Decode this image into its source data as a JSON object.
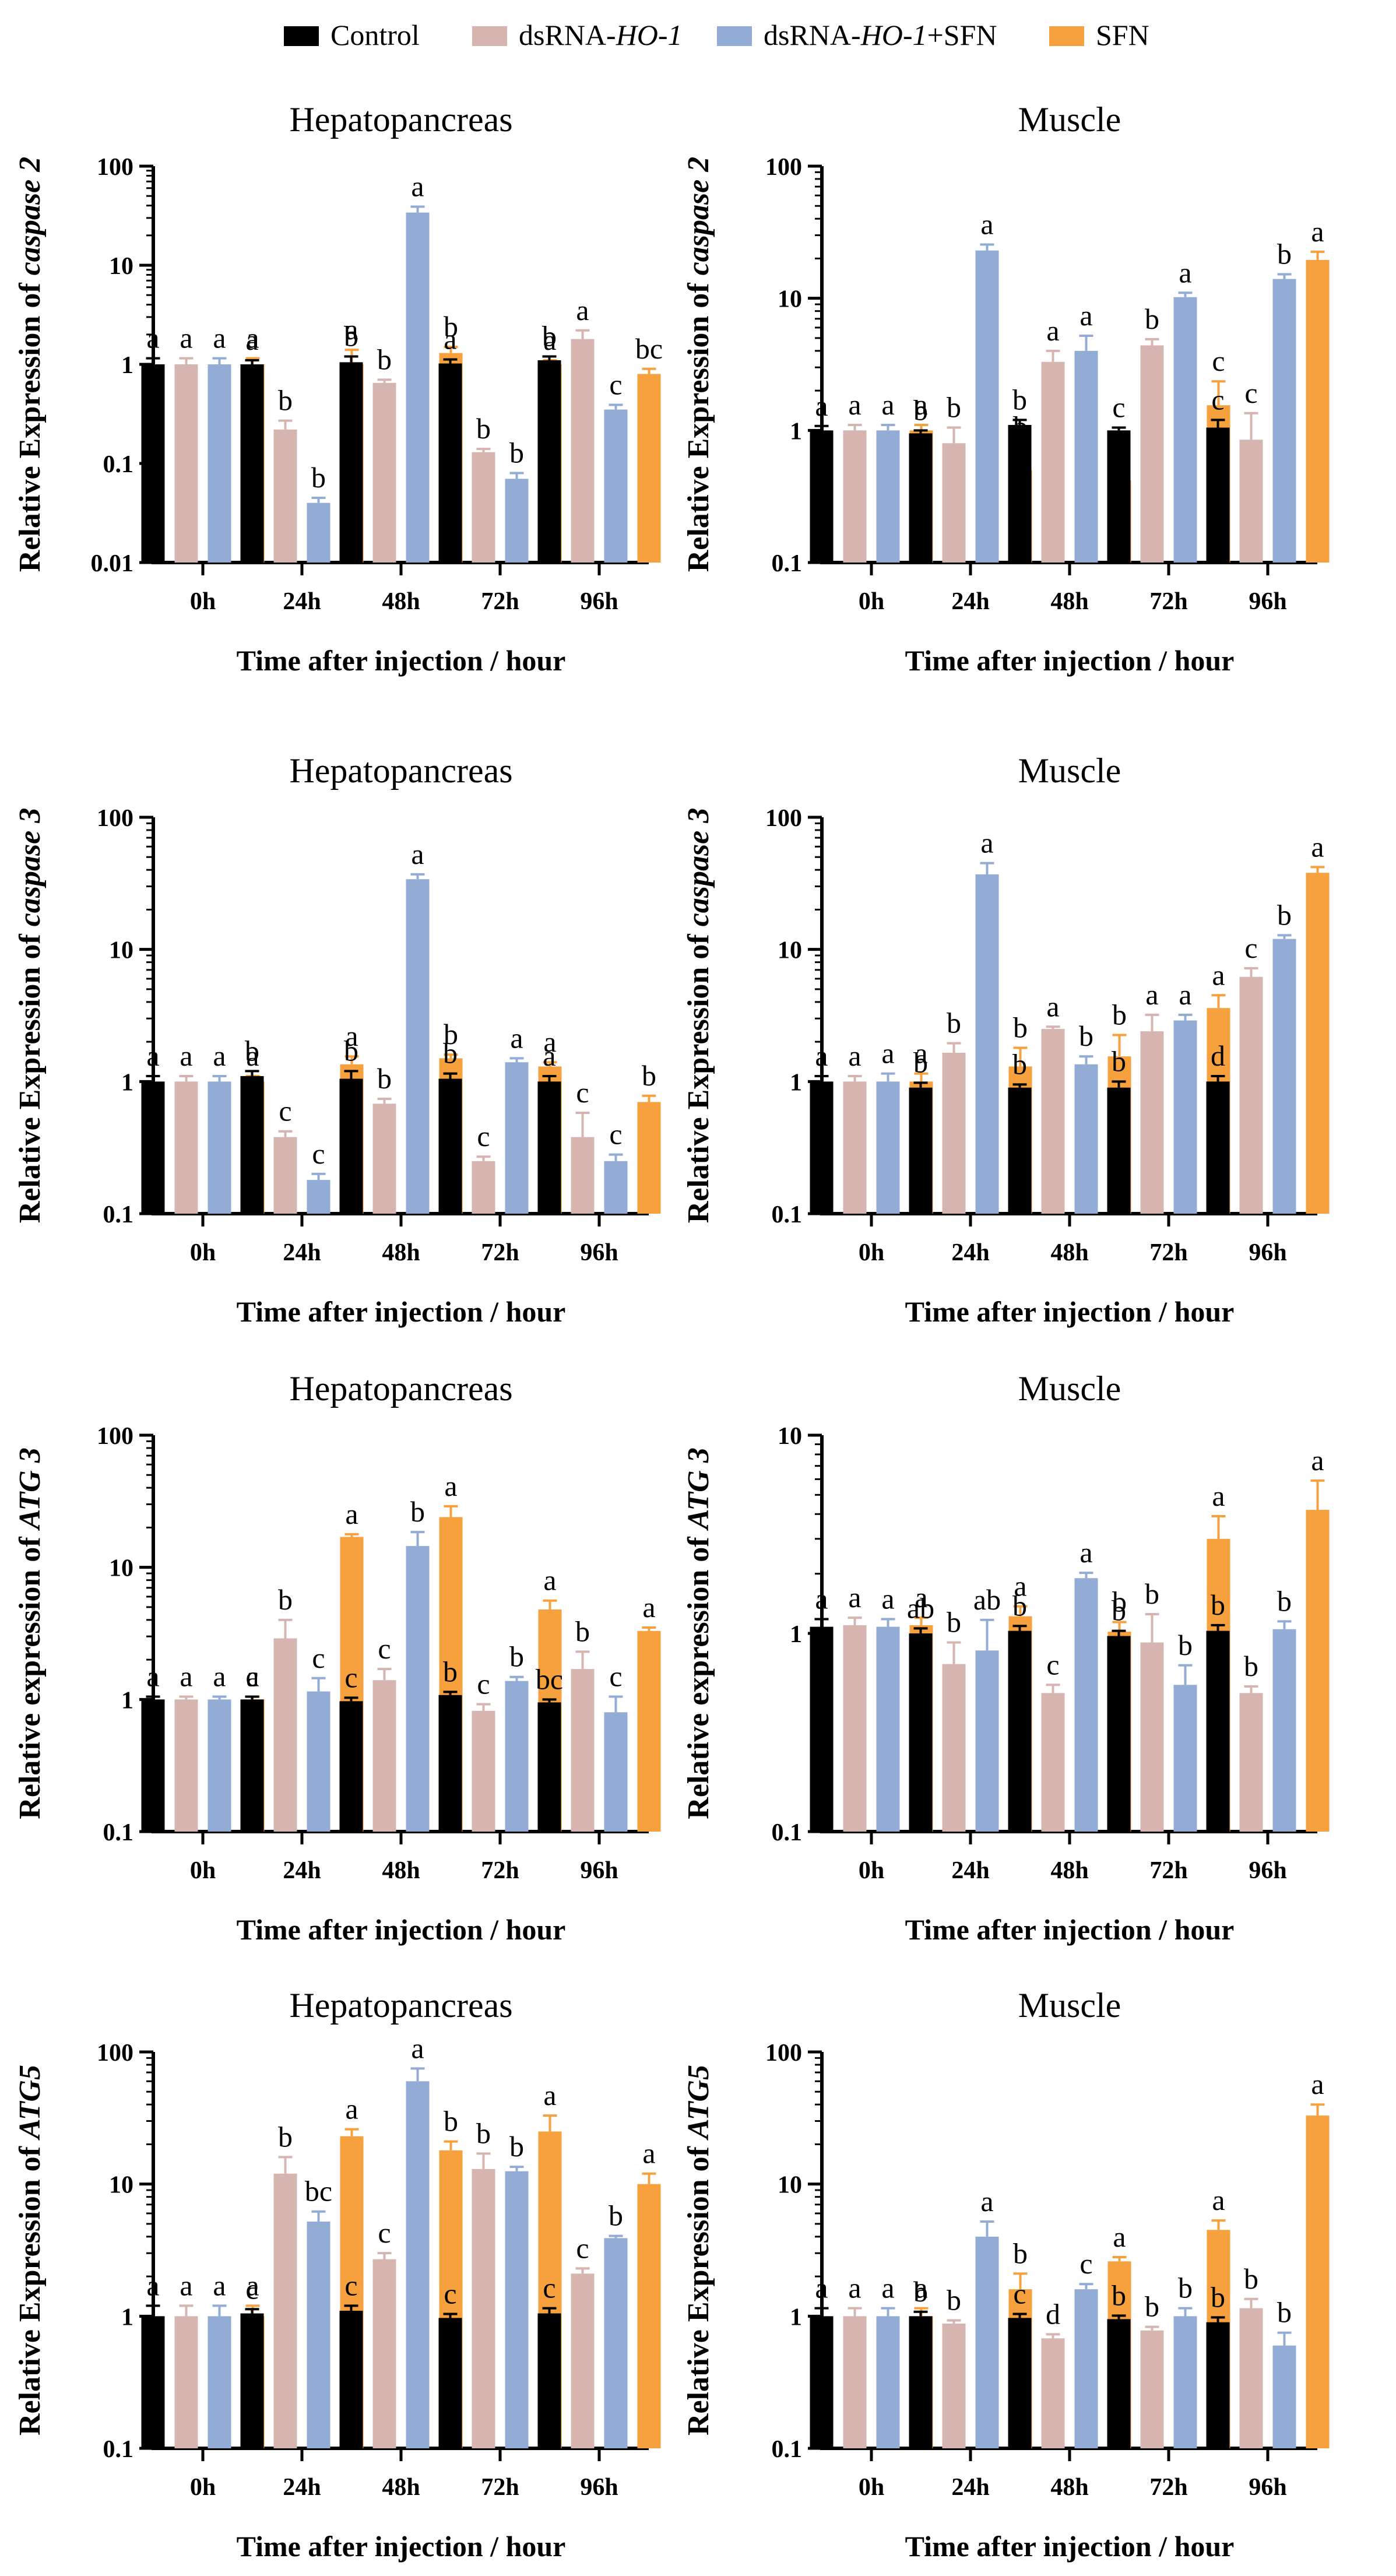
{
  "legend": [
    {
      "name": "Control",
      "plain": "Control",
      "gene": "",
      "suffix": "",
      "color": "#000000"
    },
    {
      "name": "dsRNA-HO-1",
      "plain": "dsRNA-",
      "gene": "HO-1",
      "suffix": "",
      "color": "#d6b4b0"
    },
    {
      "name": "dsRNA-HO-1+SFN",
      "plain": "dsRNA-",
      "gene": "HO-1",
      "suffix": "+SFN",
      "color": "#93acd6"
    },
    {
      "name": "SFN",
      "plain": "SFN",
      "gene": "",
      "suffix": "",
      "color": "#f7a13e"
    }
  ],
  "chart_data": [
    {
      "type": "bar",
      "scale": "log",
      "title": "Hepatopancreas",
      "ylabel_prefix": "Relative Expression of ",
      "ylabel_gene": "caspase 2",
      "xlabel": "Time after injection / hour",
      "categories": [
        "0h",
        "24h",
        "48h",
        "72h",
        "96h"
      ],
      "ylim": [
        0.01,
        100
      ],
      "yticks": [
        0.01,
        0.1,
        1,
        10,
        100
      ],
      "ytick_labels": [
        "0.01",
        "0.1",
        "1",
        "10",
        "100"
      ],
      "series": [
        {
          "name": "Control",
          "values": [
            1.0,
            1.0,
            1.05,
            1.02,
            1.1
          ],
          "errors": [
            0.15,
            0.1,
            0.15,
            0.1,
            0.1
          ],
          "labels": [
            "a",
            "a",
            "b",
            "a",
            "b"
          ]
        },
        {
          "name": "dsRNA-HO-1",
          "values": [
            1.0,
            0.22,
            0.65,
            0.13,
            1.8
          ],
          "errors": [
            0.15,
            0.05,
            0.05,
            0.01,
            0.4
          ],
          "labels": [
            "a",
            "b",
            "b",
            "b",
            "a"
          ]
        },
        {
          "name": "dsRNA-HO-1+SFN",
          "values": [
            1.0,
            0.04,
            34,
            0.07,
            0.35
          ],
          "errors": [
            0.15,
            0.005,
            5,
            0.01,
            0.04
          ],
          "labels": [
            "a",
            "b",
            "a",
            "b",
            "c"
          ]
        },
        {
          "name": "SFN",
          "values": [
            1.0,
            1.0,
            1.3,
            1.0,
            0.8
          ],
          "errors": [
            0.15,
            0.4,
            0.2,
            0.1,
            0.1
          ],
          "labels": [
            "a",
            "a",
            "b",
            "a",
            "bc"
          ]
        }
      ]
    },
    {
      "type": "bar",
      "scale": "log",
      "title": "Muscle",
      "ylabel_prefix": "Relative Expression of ",
      "ylabel_gene": "caspase 2",
      "xlabel": "Time after injection / hour",
      "categories": [
        "0h",
        "24h",
        "48h",
        "72h",
        "96h"
      ],
      "ylim": [
        0.1,
        100
      ],
      "yticks": [
        0.1,
        1,
        10,
        100
      ],
      "ytick_labels": [
        "0.1",
        "1",
        "10",
        "100"
      ],
      "series": [
        {
          "name": "Control",
          "values": [
            1.0,
            0.95,
            1.1,
            1.0,
            1.05
          ],
          "errors": [
            0.08,
            0.05,
            0.1,
            0.05,
            0.15
          ],
          "labels": [
            "a",
            "b",
            "b",
            "c",
            "c"
          ]
        },
        {
          "name": "dsRNA-HO-1",
          "values": [
            1.0,
            0.8,
            3.3,
            4.4,
            0.85
          ],
          "errors": [
            0.1,
            0.25,
            0.7,
            0.5,
            0.5
          ],
          "labels": [
            "a",
            "b",
            "a",
            "b",
            "c"
          ]
        },
        {
          "name": "dsRNA-HO-1+SFN",
          "values": [
            1.0,
            23,
            4.0,
            10.2,
            14
          ],
          "errors": [
            0.1,
            2.5,
            1.2,
            0.8,
            1.2
          ],
          "labels": [
            "a",
            "a",
            "a",
            "a",
            "b"
          ]
        },
        {
          "name": "SFN",
          "values": [
            1.0,
            0.5,
            0.42,
            1.55,
            19.5
          ],
          "errors": [
            0.1,
            0.25,
            0.15,
            0.8,
            3
          ],
          "labels": [
            "a",
            "b",
            "b",
            "c",
            "a"
          ]
        }
      ]
    },
    {
      "type": "bar",
      "scale": "log",
      "title": "Hepatopancreas",
      "ylabel_prefix": "Relative Expression of ",
      "ylabel_gene": "caspase 3",
      "xlabel": "Time after injection / hour",
      "categories": [
        "0h",
        "24h",
        "48h",
        "72h",
        "96h"
      ],
      "ylim": [
        0.1,
        100
      ],
      "yticks": [
        0.1,
        1,
        10,
        100
      ],
      "ytick_labels": [
        "0.1",
        "1",
        "10",
        "100"
      ],
      "series": [
        {
          "name": "Control",
          "values": [
            1.0,
            1.1,
            1.05,
            1.05,
            1.0
          ],
          "errors": [
            0.1,
            0.1,
            0.15,
            0.1,
            0.1
          ],
          "labels": [
            "a",
            "b",
            "b",
            "b",
            "a"
          ]
        },
        {
          "name": "dsRNA-HO-1",
          "values": [
            1.0,
            0.38,
            0.68,
            0.25,
            0.38
          ],
          "errors": [
            0.1,
            0.04,
            0.06,
            0.02,
            0.2
          ],
          "labels": [
            "a",
            "c",
            "b",
            "c",
            "c"
          ]
        },
        {
          "name": "dsRNA-HO-1+SFN",
          "values": [
            1.0,
            0.18,
            34,
            1.4,
            0.25
          ],
          "errors": [
            0.1,
            0.02,
            3,
            0.1,
            0.03
          ],
          "labels": [
            "a",
            "c",
            "a",
            "a",
            "c"
          ]
        },
        {
          "name": "SFN",
          "values": [
            1.0,
            1.35,
            1.5,
            1.3,
            0.7
          ],
          "errors": [
            0.1,
            0.2,
            0.1,
            0.1,
            0.08
          ],
          "labels": [
            "a",
            "a",
            "b",
            "a",
            "b"
          ]
        }
      ]
    },
    {
      "type": "bar",
      "scale": "log",
      "title": "Muscle",
      "ylabel_prefix": "Relative Expression of ",
      "ylabel_gene": "caspase 3",
      "xlabel": "Time after injection / hour",
      "categories": [
        "0h",
        "24h",
        "48h",
        "72h",
        "96h"
      ],
      "ylim": [
        0.1,
        100
      ],
      "yticks": [
        0.1,
        1,
        10,
        100
      ],
      "ytick_labels": [
        "0.1",
        "1",
        "10",
        "100"
      ],
      "series": [
        {
          "name": "Control",
          "values": [
            1.0,
            0.9,
            0.9,
            0.9,
            1.0
          ],
          "errors": [
            0.1,
            0.08,
            0.05,
            0.1,
            0.1
          ],
          "labels": [
            "a",
            "b",
            "b",
            "b",
            "d"
          ]
        },
        {
          "name": "dsRNA-HO-1",
          "values": [
            1.0,
            1.65,
            2.5,
            2.4,
            6.2
          ],
          "errors": [
            0.1,
            0.3,
            0.1,
            0.8,
            1
          ],
          "labels": [
            "a",
            "b",
            "a",
            "a",
            "c"
          ]
        },
        {
          "name": "dsRNA-HO-1+SFN",
          "values": [
            1.0,
            37,
            1.35,
            2.9,
            12
          ],
          "errors": [
            0.15,
            8,
            0.2,
            0.3,
            0.8
          ],
          "labels": [
            "a",
            "a",
            "b",
            "a",
            "b"
          ]
        },
        {
          "name": "SFN",
          "values": [
            1.0,
            1.3,
            1.55,
            3.6,
            38
          ],
          "errors": [
            0.15,
            0.5,
            0.7,
            0.9,
            4
          ],
          "labels": [
            "a",
            "b",
            "b",
            "a",
            "a"
          ]
        }
      ]
    },
    {
      "type": "bar",
      "scale": "log",
      "title": "Hepatopancreas",
      "ylabel_prefix": "Relative expression of ",
      "ylabel_gene": "ATG 3",
      "xlabel": "Time after injection / hour",
      "categories": [
        "0h",
        "24h",
        "48h",
        "72h",
        "96h"
      ],
      "ylim": [
        0.1,
        100
      ],
      "yticks": [
        0.1,
        1,
        10,
        100
      ],
      "ytick_labels": [
        "0.1",
        "1",
        "10",
        "100"
      ],
      "series": [
        {
          "name": "Control",
          "values": [
            1.0,
            1.0,
            0.97,
            1.08,
            0.95
          ],
          "errors": [
            0.05,
            0.05,
            0.06,
            0.06,
            0.05
          ],
          "labels": [
            "a",
            "c",
            "c",
            "b",
            "bc"
          ]
        },
        {
          "name": "dsRNA-HO-1",
          "values": [
            1.0,
            2.9,
            1.4,
            0.82,
            1.7
          ],
          "errors": [
            0.05,
            1.1,
            0.3,
            0.1,
            0.6
          ],
          "labels": [
            "a",
            "b",
            "c",
            "c",
            "b"
          ]
        },
        {
          "name": "dsRNA-HO-1+SFN",
          "values": [
            1.0,
            1.15,
            14.5,
            1.38,
            0.8
          ],
          "errors": [
            0.05,
            0.3,
            4,
            0.1,
            0.25
          ],
          "labels": [
            "a",
            "c",
            "b",
            "b",
            "c"
          ]
        },
        {
          "name": "SFN",
          "values": [
            1.0,
            17,
            24,
            4.8,
            3.3
          ],
          "errors": [
            0.05,
            0.8,
            5,
            0.8,
            0.2
          ],
          "labels": [
            "a",
            "a",
            "a",
            "a",
            "a"
          ]
        }
      ]
    },
    {
      "type": "bar",
      "scale": "log",
      "title": "Muscle",
      "ylabel_prefix": "Relative expression of ",
      "ylabel_gene": "ATG 3",
      "xlabel": "Time after injection / hour",
      "categories": [
        "0h",
        "24h",
        "48h",
        "72h",
        "96h"
      ],
      "ylim": [
        0.1,
        10
      ],
      "yticks": [
        0.1,
        1,
        10
      ],
      "ytick_labels": [
        "0.1",
        "1",
        "10"
      ],
      "series": [
        {
          "name": "Control",
          "values": [
            1.08,
            1.0,
            1.03,
            0.97,
            1.03
          ],
          "errors": [
            0.1,
            0.06,
            0.06,
            0.06,
            0.07
          ],
          "labels": [
            "a",
            "ab",
            "b",
            "b",
            "b"
          ]
        },
        {
          "name": "dsRNA-HO-1",
          "values": [
            1.1,
            0.7,
            0.5,
            0.9,
            0.5
          ],
          "errors": [
            0.1,
            0.2,
            0.05,
            0.35,
            0.04
          ],
          "labels": [
            "a",
            "b",
            "c",
            "b",
            "b"
          ]
        },
        {
          "name": "dsRNA-HO-1+SFN",
          "values": [
            1.08,
            0.82,
            1.9,
            0.55,
            1.05
          ],
          "errors": [
            0.1,
            0.35,
            0.12,
            0.14,
            0.1
          ],
          "labels": [
            "a",
            "ab",
            "a",
            "b",
            "b"
          ]
        },
        {
          "name": "SFN",
          "values": [
            1.1,
            1.22,
            1.02,
            3.0,
            4.2
          ],
          "errors": [
            0.1,
            0.15,
            0.12,
            0.9,
            1.7
          ],
          "labels": [
            "a",
            "a",
            "b",
            "a",
            "a"
          ]
        }
      ]
    },
    {
      "type": "bar",
      "scale": "log",
      "title": "Hepatopancreas",
      "ylabel_prefix": "Relative Expression of ",
      "ylabel_gene": "ATG5",
      "xlabel": "Time after injection / hour",
      "categories": [
        "0h",
        "24h",
        "48h",
        "72h",
        "96h"
      ],
      "ylim": [
        0.1,
        100
      ],
      "yticks": [
        0.1,
        1,
        10,
        100
      ],
      "ytick_labels": [
        "0.1",
        "1",
        "10",
        "100"
      ],
      "series": [
        {
          "name": "Control",
          "values": [
            1.0,
            1.05,
            1.1,
            0.97,
            1.05
          ],
          "errors": [
            0.2,
            0.08,
            0.1,
            0.07,
            0.1
          ],
          "labels": [
            "a",
            "c",
            "c",
            "c",
            "c"
          ]
        },
        {
          "name": "dsRNA-HO-1",
          "values": [
            1.0,
            12,
            2.7,
            13,
            2.1
          ],
          "errors": [
            0.2,
            4,
            0.3,
            4,
            0.2
          ],
          "labels": [
            "a",
            "b",
            "c",
            "b",
            "c"
          ]
        },
        {
          "name": "dsRNA-HO-1+SFN",
          "values": [
            1.0,
            5.2,
            60,
            12.5,
            3.9
          ],
          "errors": [
            0.2,
            1,
            15,
            1,
            0.15
          ],
          "labels": [
            "a",
            "bc",
            "a",
            "b",
            "b"
          ]
        },
        {
          "name": "SFN",
          "values": [
            1.0,
            23,
            18,
            25,
            10
          ],
          "errors": [
            0.2,
            3,
            3,
            8,
            2
          ],
          "labels": [
            "a",
            "a",
            "b",
            "a",
            "a"
          ]
        }
      ]
    },
    {
      "type": "bar",
      "scale": "log",
      "title": "Muscle",
      "ylabel_prefix": "Relative Expression of ",
      "ylabel_gene": "ATG5",
      "xlabel": "Time after injection / hour",
      "categories": [
        "0h",
        "24h",
        "48h",
        "72h",
        "96h"
      ],
      "ylim": [
        0.1,
        100
      ],
      "yticks": [
        0.1,
        1,
        10,
        100
      ],
      "ytick_labels": [
        "0.1",
        "1",
        "10",
        "100"
      ],
      "series": [
        {
          "name": "Control",
          "values": [
            1.0,
            1.0,
            0.97,
            0.95,
            0.9
          ],
          "errors": [
            0.15,
            0.08,
            0.07,
            0.06,
            0.08
          ],
          "labels": [
            "a",
            "b",
            "c",
            "b",
            "b"
          ]
        },
        {
          "name": "dsRNA-HO-1",
          "values": [
            1.0,
            0.88,
            0.68,
            0.78,
            1.15
          ],
          "errors": [
            0.15,
            0.05,
            0.05,
            0.05,
            0.2
          ],
          "labels": [
            "a",
            "b",
            "d",
            "b",
            "b"
          ]
        },
        {
          "name": "dsRNA-HO-1+SFN",
          "values": [
            1.0,
            4.0,
            1.6,
            1.0,
            0.6
          ],
          "errors": [
            0.15,
            1.2,
            0.15,
            0.15,
            0.15
          ],
          "labels": [
            "a",
            "a",
            "c",
            "b",
            "b"
          ]
        },
        {
          "name": "SFN",
          "values": [
            1.0,
            1.6,
            2.6,
            4.5,
            33
          ],
          "errors": [
            0.15,
            0.5,
            0.2,
            0.8,
            7
          ],
          "labels": [
            "a",
            "b",
            "a",
            "a",
            "a"
          ]
        }
      ]
    }
  ]
}
